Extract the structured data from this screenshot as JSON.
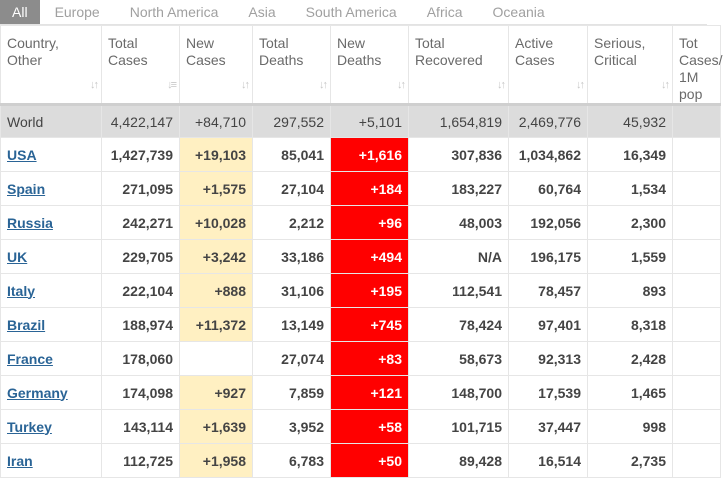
{
  "tabs": [
    "All",
    "Europe",
    "North America",
    "Asia",
    "South America",
    "Africa",
    "Oceania"
  ],
  "headers": [
    {
      "label": "Country, Other"
    },
    {
      "label": "Total Cases"
    },
    {
      "label": "New Cases"
    },
    {
      "label": "Total Deaths"
    },
    {
      "label": "New Deaths"
    },
    {
      "label": "Total Recovered"
    },
    {
      "label": "Active Cases"
    },
    {
      "label": "Serious, Critical"
    },
    {
      "label": "Tot Cases/ 1M pop"
    }
  ],
  "world": {
    "country": "World",
    "total_cases": "4,422,147",
    "new_cases": "+84,710",
    "total_deaths": "297,552",
    "new_deaths": "+5,101",
    "total_recovered": "1,654,819",
    "active_cases": "2,469,776",
    "serious_critical": "45,932",
    "tot_cases_1m": ""
  },
  "rows": [
    {
      "country": "USA",
      "total_cases": "1,427,739",
      "new_cases": "+19,103",
      "total_deaths": "85,041",
      "new_deaths": "+1,616",
      "total_recovered": "307,836",
      "active_cases": "1,034,862",
      "serious_critical": "16,349",
      "tot_cases_1m": ""
    },
    {
      "country": "Spain",
      "total_cases": "271,095",
      "new_cases": "+1,575",
      "total_deaths": "27,104",
      "new_deaths": "+184",
      "total_recovered": "183,227",
      "active_cases": "60,764",
      "serious_critical": "1,534",
      "tot_cases_1m": ""
    },
    {
      "country": "Russia",
      "total_cases": "242,271",
      "new_cases": "+10,028",
      "total_deaths": "2,212",
      "new_deaths": "+96",
      "total_recovered": "48,003",
      "active_cases": "192,056",
      "serious_critical": "2,300",
      "tot_cases_1m": ""
    },
    {
      "country": "UK",
      "total_cases": "229,705",
      "new_cases": "+3,242",
      "total_deaths": "33,186",
      "new_deaths": "+494",
      "total_recovered": "N/A",
      "active_cases": "196,175",
      "serious_critical": "1,559",
      "tot_cases_1m": ""
    },
    {
      "country": "Italy",
      "total_cases": "222,104",
      "new_cases": "+888",
      "total_deaths": "31,106",
      "new_deaths": "+195",
      "total_recovered": "112,541",
      "active_cases": "78,457",
      "serious_critical": "893",
      "tot_cases_1m": ""
    },
    {
      "country": "Brazil",
      "total_cases": "188,974",
      "new_cases": "+11,372",
      "total_deaths": "13,149",
      "new_deaths": "+745",
      "total_recovered": "78,424",
      "active_cases": "97,401",
      "serious_critical": "8,318",
      "tot_cases_1m": ""
    },
    {
      "country": "France",
      "total_cases": "178,060",
      "new_cases": "",
      "total_deaths": "27,074",
      "new_deaths": "+83",
      "total_recovered": "58,673",
      "active_cases": "92,313",
      "serious_critical": "2,428",
      "tot_cases_1m": ""
    },
    {
      "country": "Germany",
      "total_cases": "174,098",
      "new_cases": "+927",
      "total_deaths": "7,859",
      "new_deaths": "+121",
      "total_recovered": "148,700",
      "active_cases": "17,539",
      "serious_critical": "1,465",
      "tot_cases_1m": ""
    },
    {
      "country": "Turkey",
      "total_cases": "143,114",
      "new_cases": "+1,639",
      "total_deaths": "3,952",
      "new_deaths": "+58",
      "total_recovered": "101,715",
      "active_cases": "37,447",
      "serious_critical": "998",
      "tot_cases_1m": ""
    },
    {
      "country": "Iran",
      "total_cases": "112,725",
      "new_cases": "+1,958",
      "total_deaths": "6,783",
      "new_deaths": "+50",
      "total_recovered": "89,428",
      "active_cases": "16,514",
      "serious_critical": "2,735",
      "tot_cases_1m": ""
    }
  ],
  "colors": {
    "new_cases_highlight": "#fff0c2",
    "new_deaths_highlight": "#ff0000",
    "world_row_bg": "#dcdcdc",
    "country_link": "#2a6496",
    "active_tab_bg": "#8c8c8c"
  },
  "icons": {
    "sort": "sort-arrows-icon",
    "sort_active": "sort-desc-icon"
  }
}
